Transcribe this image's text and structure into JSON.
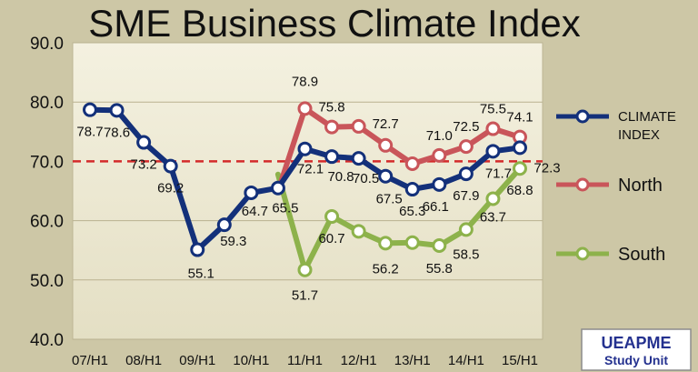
{
  "chart_data": {
    "type": "line",
    "title": "SME Business Climate Index",
    "xlabel": "",
    "ylabel": "",
    "ylim": [
      40,
      90
    ],
    "yticks": [
      "40.0",
      "50.0",
      "60.0",
      "70.0",
      "80.0",
      "90.0"
    ],
    "x_tick_labels": [
      "07/H1",
      "08/H1",
      "09/H1",
      "10/H1",
      "11/H1",
      "12/H1",
      "13/H1",
      "14/H1",
      "15/H1"
    ],
    "reference_line": {
      "y": 70,
      "color": "#d42a2a",
      "style": "dashed"
    },
    "series": [
      {
        "name": "CLIMATE INDEX",
        "legend_label_lines": [
          "CLIMATE",
          "INDEX"
        ],
        "color": "#13307a",
        "x": [
          0,
          0.5,
          1,
          1.5,
          2,
          2.5,
          3,
          3.5,
          4,
          4.5,
          5,
          5.5,
          6,
          6.5,
          7,
          7.5,
          8
        ],
        "values": [
          78.7,
          78.6,
          73.2,
          69.2,
          55.1,
          59.3,
          64.7,
          65.5,
          72.1,
          70.8,
          70.5,
          67.5,
          65.3,
          66.1,
          67.9,
          71.7,
          72.3
        ],
        "labels": [
          "78.7",
          "78.6",
          "73.2",
          "69.2",
          "55.1",
          "59.3",
          "64.7",
          "65.5",
          "72.1",
          "70.8",
          "70.5",
          "67.5",
          "65.3",
          "66.1",
          "67.9",
          "71.7",
          "72.3"
        ]
      },
      {
        "name": "North",
        "color": "#c9555a",
        "x": [
          3.5,
          4,
          4.5,
          5,
          5.5,
          6,
          6.5,
          7,
          7.5,
          8
        ],
        "values": [
          65,
          78.9,
          75.8,
          75.9,
          72.7,
          69.6,
          71.0,
          72.5,
          75.5,
          74.1
        ],
        "labels": [
          "",
          "78.9",
          "75.8",
          "",
          "72.7",
          "",
          "71.0",
          "72.5",
          "75.5",
          "74.1"
        ]
      },
      {
        "name": "South",
        "color": "#8db24b",
        "x": [
          3.5,
          4,
          4.5,
          5,
          5.5,
          6,
          6.5,
          7,
          7.5,
          8
        ],
        "values": [
          67.8,
          51.7,
          60.7,
          58.2,
          56.2,
          56.3,
          55.8,
          58.5,
          63.7,
          68.8
        ],
        "labels": [
          "",
          "51.7",
          "60.7",
          "",
          "56.2",
          "",
          "55.8",
          "58.5",
          "63.7",
          "68.8"
        ]
      }
    ]
  },
  "badge": {
    "line1": "UEAPME",
    "line2": "Study Unit"
  }
}
